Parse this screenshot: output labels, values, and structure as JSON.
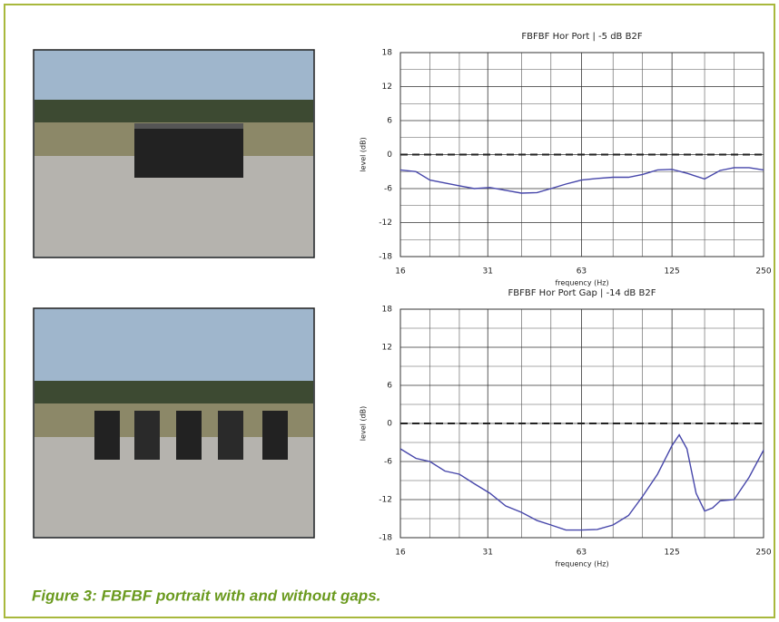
{
  "chart_data": [
    {
      "type": "line",
      "title": "FBFBF Hor Port | -5 dB B2F",
      "x_label": "frequency (Hz)",
      "y_label": "level (dB)",
      "x": [
        16,
        18,
        20,
        22.4,
        25,
        28,
        31.5,
        35.5,
        40,
        45,
        50,
        56,
        63,
        71,
        80,
        90,
        100,
        112,
        125,
        140,
        160,
        180,
        200,
        224,
        250
      ],
      "series": [
        {
          "color": "#4646aa",
          "values": [
            -2.7,
            -3,
            -4.5,
            -5,
            -5.5,
            -6,
            -5.8,
            -6.3,
            -6.8,
            -6.7,
            -6,
            -5.2,
            -4.5,
            -4.2,
            -4,
            -4,
            -3.5,
            -2.7,
            -2.6,
            -3.3,
            -4.3,
            -2.8,
            -2.3,
            -2.3,
            -2.7
          ]
        }
      ],
      "xlim": [
        16,
        250
      ],
      "x_log": true,
      "xticks": [
        16,
        31,
        63,
        125,
        250
      ],
      "x_minor_ticks": [
        20,
        25,
        40,
        50,
        80,
        100,
        160,
        200
      ],
      "ylim": [
        -18,
        18
      ],
      "yticks": [
        -18,
        -12,
        -6,
        0,
        6,
        12,
        18
      ],
      "y_minor_ticks": [
        -15,
        -9,
        -3,
        3,
        9,
        15
      ],
      "grid": true,
      "reference_line": 0
    },
    {
      "type": "line",
      "title": "FBFBF Hor Port Gap | -14 dB B2F",
      "x_label": "frequency (Hz)",
      "y_label": "level (dB)",
      "x": [
        16,
        18,
        20,
        22.4,
        25,
        28,
        31.5,
        35.5,
        40,
        45,
        50,
        56,
        63,
        71,
        80,
        90,
        100,
        112,
        125,
        132,
        140,
        150,
        160,
        170,
        180,
        200,
        224,
        250
      ],
      "series": [
        {
          "color": "#4646aa",
          "values": [
            -4,
            -5.5,
            -6,
            -7.5,
            -8,
            -9.5,
            -11,
            -13,
            -14,
            -15.3,
            -16,
            -16.8,
            -16.8,
            -16.7,
            -16,
            -14.5,
            -11.5,
            -8,
            -3.5,
            -1.8,
            -4,
            -11,
            -13.8,
            -13.3,
            -12.2,
            -12,
            -8.5,
            -4.2
          ]
        }
      ],
      "xlim": [
        16,
        250
      ],
      "x_log": true,
      "xticks": [
        16,
        31,
        63,
        125,
        250
      ],
      "x_minor_ticks": [
        20,
        25,
        40,
        50,
        80,
        100,
        160,
        200
      ],
      "ylim": [
        -18,
        18
      ],
      "yticks": [
        -18,
        -12,
        -6,
        0,
        6,
        12,
        18
      ],
      "y_minor_ticks": [
        -15,
        -9,
        -3,
        3,
        9,
        15
      ],
      "grid": true,
      "reference_line": 0
    }
  ],
  "caption": "Figure 3: FBFBF portrait with and without gaps."
}
